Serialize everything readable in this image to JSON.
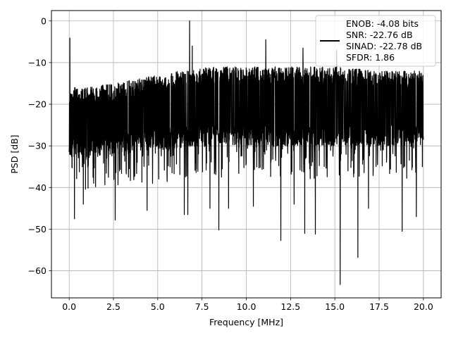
{
  "chart_data": {
    "type": "line",
    "title": "",
    "xlabel": "Frequency [MHz]",
    "ylabel": "PSD [dB]",
    "xlim": [
      -1.0,
      21.0
    ],
    "ylim": [
      -66.5,
      2.5
    ],
    "x_ticks": [
      0.0,
      2.5,
      5.0,
      7.5,
      10.0,
      12.5,
      15.0,
      17.5,
      20.0
    ],
    "x_tick_labels": [
      "0.0",
      "2.5",
      "5.0",
      "7.5",
      "10.0",
      "12.5",
      "15.0",
      "17.5",
      "20.0"
    ],
    "y_ticks": [
      0,
      -10,
      -20,
      -30,
      -40,
      -50,
      -60
    ],
    "y_tick_labels": [
      "0",
      "−10",
      "−20",
      "−30",
      "−40",
      "−50",
      "−60"
    ],
    "grid": true,
    "legend_position": "top-right",
    "series": [
      {
        "name": "ENOB: -4.08 bits\nSNR: -22.76 dB\nSINAD: -22.78 dB\nSFDR: 1.86",
        "color": "#000000",
        "x_range": [
          0.0,
          20.0
        ],
        "band_top": [
          [
            0.0,
            -16
          ],
          [
            1.0,
            -16
          ],
          [
            2.5,
            -15
          ],
          [
            5.0,
            -13
          ],
          [
            7.5,
            -11
          ],
          [
            10.0,
            -11
          ],
          [
            12.5,
            -11
          ],
          [
            15.0,
            -11
          ],
          [
            17.5,
            -12
          ],
          [
            20.0,
            -12
          ]
        ],
        "band_bottom": [
          [
            0.0,
            -33
          ],
          [
            1.0,
            -33
          ],
          [
            2.5,
            -32
          ],
          [
            5.0,
            -31
          ],
          [
            7.5,
            -30
          ],
          [
            10.0,
            -30
          ],
          [
            12.5,
            -30
          ],
          [
            15.0,
            -30
          ],
          [
            17.5,
            -30
          ],
          [
            20.0,
            -30
          ]
        ],
        "peaks": [
          [
            0.04,
            -4.1
          ],
          [
            6.8,
            0.0
          ],
          [
            6.95,
            -6.0
          ],
          [
            11.1,
            -4.5
          ],
          [
            13.2,
            -6.5
          ],
          [
            15.1,
            -7.0
          ],
          [
            16.9,
            -6.5
          ]
        ],
        "dips": [
          [
            0.3,
            -47.5
          ],
          [
            0.8,
            -44
          ],
          [
            2.6,
            -47.8
          ],
          [
            4.4,
            -45.5
          ],
          [
            6.5,
            -46.5
          ],
          [
            6.7,
            -46.5
          ],
          [
            7.95,
            -45
          ],
          [
            8.45,
            -50.2
          ],
          [
            9.0,
            -45
          ],
          [
            10.4,
            -44.5
          ],
          [
            11.95,
            -52.7
          ],
          [
            12.7,
            -44
          ],
          [
            13.3,
            -51
          ],
          [
            13.9,
            -51.2
          ],
          [
            15.3,
            -63.3
          ],
          [
            16.3,
            -56.8
          ],
          [
            16.9,
            -45
          ],
          [
            18.8,
            -50.5
          ],
          [
            19.6,
            -47
          ]
        ]
      }
    ],
    "legend_lines": [
      "ENOB: -4.08 bits",
      "SNR: -22.76 dB",
      "SINAD: -22.78 dB",
      "SFDR: 1.86"
    ]
  }
}
